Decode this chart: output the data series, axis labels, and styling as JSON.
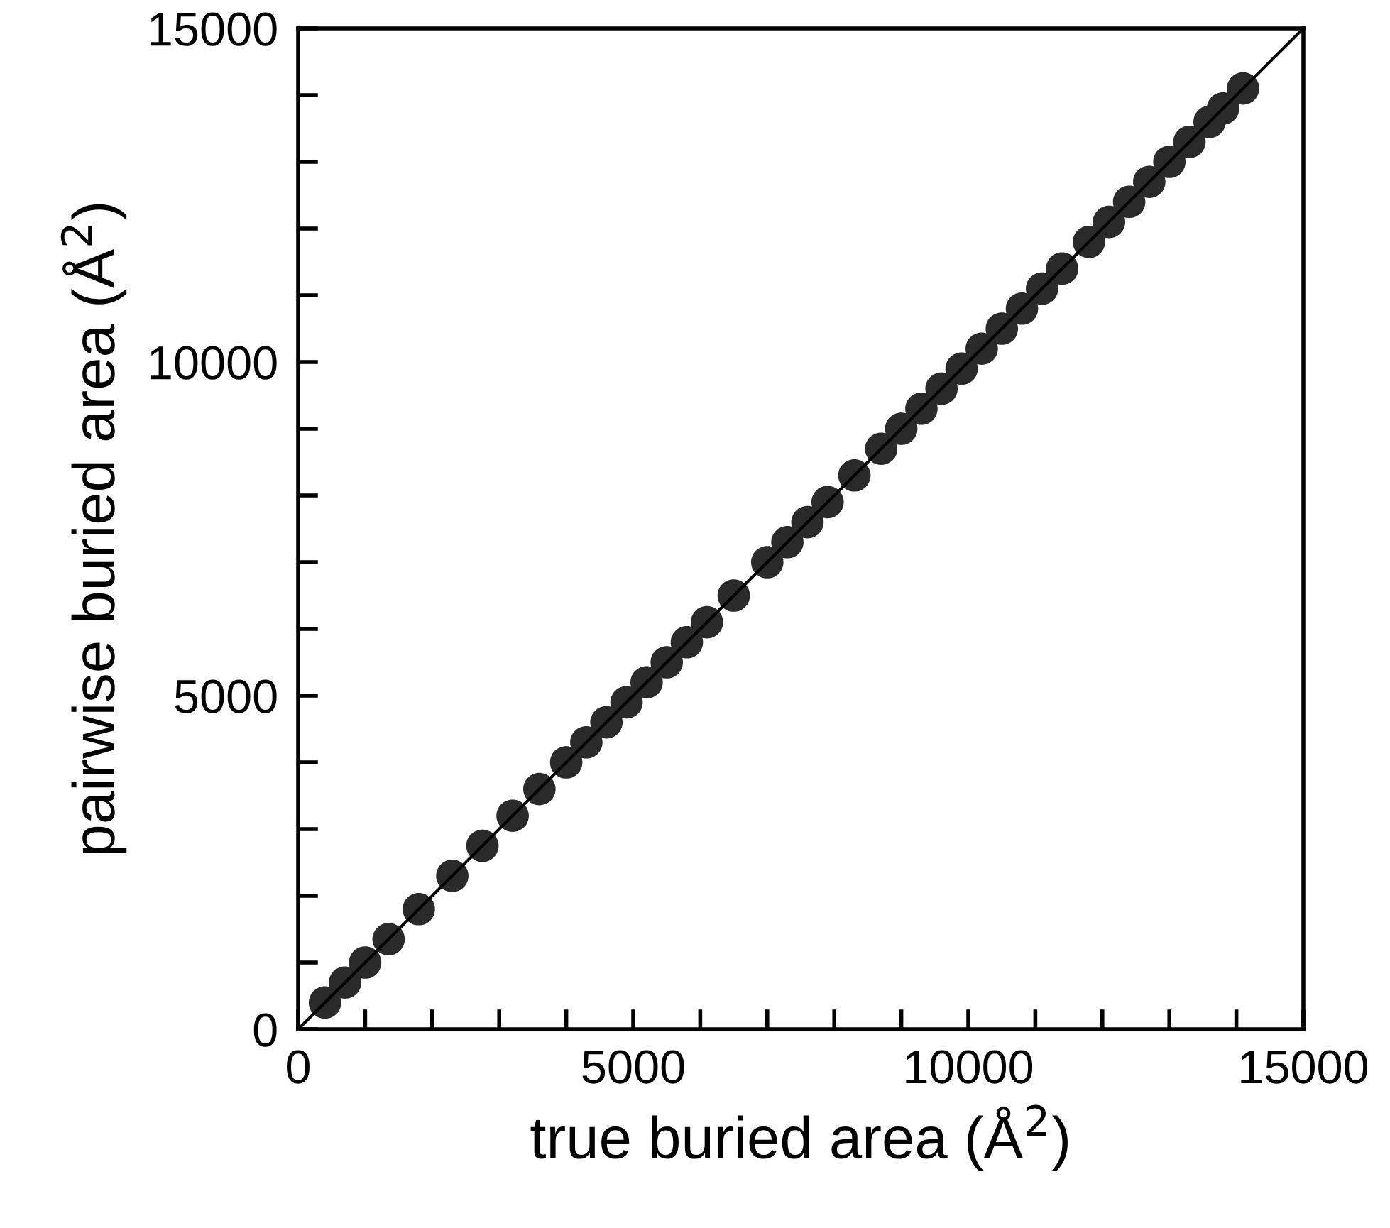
{
  "chart_data": {
    "type": "scatter",
    "xlabel": "true buried area (Å$^{2}$)",
    "ylabel": "pairwise buried area (Å$^{2}$)",
    "xlim": [
      0,
      15000
    ],
    "ylim": [
      0,
      15000
    ],
    "xticks": [
      0,
      {
        "value": 1000,
        "label": null
      },
      {
        "value": 2000,
        "label": null
      },
      {
        "value": 3000,
        "label": null
      },
      {
        "value": 4000,
        "label": null
      },
      5000,
      {
        "value": 6000,
        "label": null
      },
      {
        "value": 7000,
        "label": null
      },
      {
        "value": 8000,
        "label": null
      },
      {
        "value": 9000,
        "label": null
      },
      10000,
      {
        "value": 11000,
        "label": null
      },
      {
        "value": 12000,
        "label": null
      },
      {
        "value": 13000,
        "label": null
      },
      {
        "value": 14000,
        "label": null
      },
      15000
    ],
    "yticks": [
      0,
      {
        "value": 1000,
        "label": null
      },
      {
        "value": 2000,
        "label": null
      },
      {
        "value": 3000,
        "label": null
      },
      {
        "value": 4000,
        "label": null
      },
      5000,
      {
        "value": 6000,
        "label": null
      },
      {
        "value": 7000,
        "label": null
      },
      {
        "value": 8000,
        "label": null
      },
      {
        "value": 9000,
        "label": null
      },
      10000,
      {
        "value": 11000,
        "label": null
      },
      {
        "value": 12000,
        "label": null
      },
      {
        "value": 13000,
        "label": null
      },
      {
        "value": 14000,
        "label": null
      },
      15000
    ],
    "grid": false,
    "legend": false,
    "marker": "circle",
    "series": [
      {
        "type": "line",
        "color": "#000000",
        "line_style": "solid",
        "marker": "none",
        "x": [
          0,
          15000
        ],
        "values": [
          0,
          15000
        ]
      },
      {
        "color": "#2a2a2a",
        "x": [
          400,
          700,
          1000,
          1350,
          1800,
          2300,
          2750,
          3200,
          3600,
          4000,
          4300,
          4600,
          4900,
          5200,
          5500,
          5800,
          6100,
          6500,
          7000,
          7300,
          7600,
          7900,
          8300,
          8700,
          9000,
          9300,
          9600,
          9900,
          10200,
          10500,
          10800,
          11100,
          11400,
          11800,
          12100,
          12400,
          12700,
          13000,
          13300,
          13600,
          13800,
          14100
        ],
        "values": [
          400,
          700,
          1000,
          1350,
          1800,
          2300,
          2750,
          3200,
          3600,
          4000,
          4300,
          4600,
          4900,
          5200,
          5500,
          5800,
          6100,
          6500,
          7000,
          7300,
          7600,
          7900,
          8300,
          8700,
          9000,
          9300,
          9600,
          9900,
          10200,
          10500,
          10800,
          11100,
          11400,
          11800,
          12100,
          12400,
          12700,
          13000,
          13300,
          13600,
          13800,
          14100
        ]
      }
    ]
  }
}
